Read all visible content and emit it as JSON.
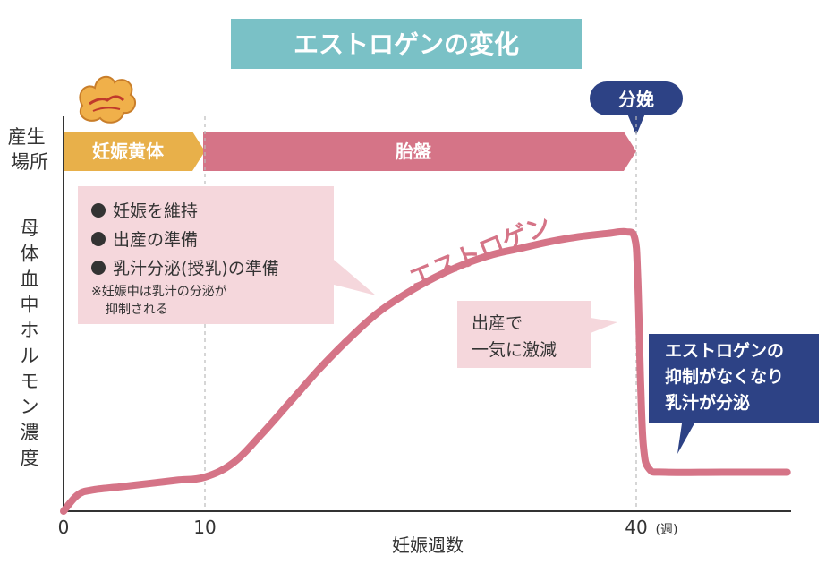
{
  "chart_data": {
    "type": "line",
    "title": "エストロゲンの変化",
    "xlabel": "妊娠週数",
    "ylabel": "母体血中ホルモン濃度",
    "x_ticks": [
      {
        "value": 0,
        "label": "0"
      },
      {
        "value": 10,
        "label": "10"
      },
      {
        "value": 40,
        "label": "40",
        "unit": "(週)"
      }
    ],
    "xlim": [
      0,
      51
    ],
    "ylim": [
      0,
      100
    ],
    "series": [
      {
        "name": "エストロゲン",
        "color": "#d57487",
        "points": [
          [
            0,
            0
          ],
          [
            1,
            5
          ],
          [
            2,
            6.5
          ],
          [
            4,
            7.5
          ],
          [
            6,
            8.5
          ],
          [
            8,
            9.5
          ],
          [
            10,
            10.5
          ],
          [
            12,
            15
          ],
          [
            14,
            24
          ],
          [
            16,
            34
          ],
          [
            18,
            44
          ],
          [
            20,
            53
          ],
          [
            22,
            61
          ],
          [
            24,
            67
          ],
          [
            26,
            72
          ],
          [
            28,
            76
          ],
          [
            30,
            79
          ],
          [
            32,
            81
          ],
          [
            34,
            83
          ],
          [
            36,
            84.5
          ],
          [
            38,
            85.5
          ],
          [
            39.3,
            86
          ],
          [
            39.9,
            84
          ],
          [
            40.1,
            72
          ],
          [
            40.3,
            40
          ],
          [
            40.5,
            20
          ],
          [
            40.9,
            13
          ],
          [
            42,
            12
          ],
          [
            46,
            12
          ],
          [
            50.5,
            12
          ]
        ]
      }
    ],
    "source_label": "産生場所",
    "sources": [
      {
        "label": "妊娠黄体",
        "from": 0,
        "to": 10,
        "color": "#e8b04a"
      },
      {
        "label": "胎盤",
        "from": 10,
        "to": 40,
        "color": "#d57487"
      }
    ],
    "events": [
      {
        "label": "分娩",
        "x": 40,
        "color": "#2d4285"
      }
    ],
    "annotations": {
      "early": {
        "bullets": [
          "妊娠を維持",
          "出産の準備",
          "乳汁分泌(授乳)の準備"
        ],
        "note_lines": [
          "※妊娠中は乳汁の分泌が",
          "抑制される"
        ],
        "bg_color": "#f5d7dc"
      },
      "drop": {
        "lines": [
          "出産で",
          "一気に激減"
        ],
        "bg_color": "#f5d7dc"
      },
      "after": {
        "lines": [
          "エストロゲンの",
          "抑制がなくなり",
          "乳汁が分泌"
        ],
        "bg_color": "#2d4285"
      }
    },
    "title_bg_color": "#7ac1c6",
    "grid": false
  }
}
